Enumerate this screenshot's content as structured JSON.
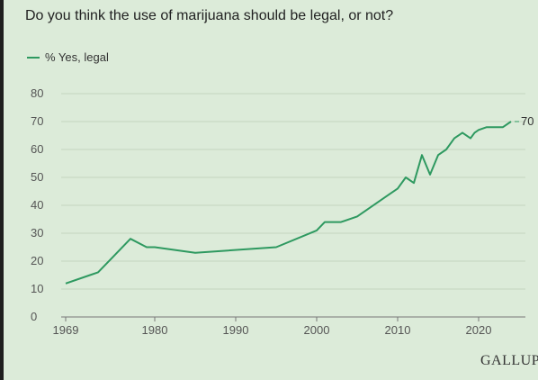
{
  "question": "Do you think the use of marijuana should be legal, or not?",
  "brand": "GALLUP",
  "colors": {
    "background": "#dcebd9",
    "line": "#2e9960",
    "grid": "#c3d6c0",
    "axis": "#777777"
  },
  "chart_data": {
    "type": "line",
    "title": "",
    "xlabel": "",
    "ylabel": "",
    "xlim": [
      1969,
      2024
    ],
    "ylim": [
      0,
      80
    ],
    "grid": true,
    "legend_position": "top-left",
    "x_ticks": [
      "1969",
      "1980",
      "1990",
      "2000",
      "2010",
      "2020"
    ],
    "y_ticks": [
      "0",
      "10",
      "20",
      "30",
      "40",
      "50",
      "60",
      "70",
      "80"
    ],
    "series": [
      {
        "name": "% Yes, legal",
        "points": [
          [
            1969,
            12
          ],
          [
            1972,
            15
          ],
          [
            1973,
            16
          ],
          [
            1977,
            28
          ],
          [
            1979,
            25
          ],
          [
            1980,
            25
          ],
          [
            1985,
            23
          ],
          [
            1995,
            25
          ],
          [
            2000,
            31
          ],
          [
            2001,
            34
          ],
          [
            2003,
            34
          ],
          [
            2005,
            36
          ],
          [
            2009,
            44
          ],
          [
            2010,
            46
          ],
          [
            2011,
            50
          ],
          [
            2012,
            48
          ],
          [
            2013,
            58
          ],
          [
            2014,
            51
          ],
          [
            2015,
            58
          ],
          [
            2016,
            60
          ],
          [
            2017,
            64
          ],
          [
            2018,
            66
          ],
          [
            2019,
            64
          ],
          [
            2019.5,
            66
          ],
          [
            2020,
            67
          ],
          [
            2021,
            68
          ],
          [
            2022,
            68
          ],
          [
            2023,
            68
          ],
          [
            2024,
            70
          ]
        ],
        "end_label": "70"
      }
    ]
  }
}
